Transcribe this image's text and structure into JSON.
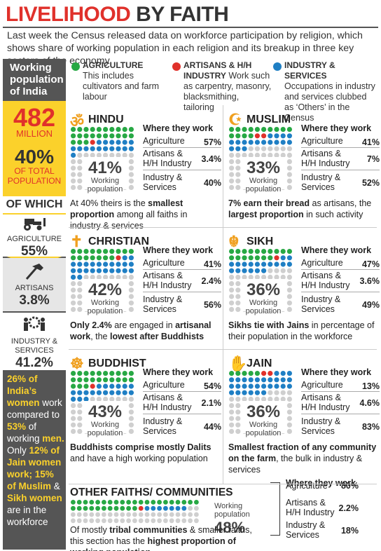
{
  "title": {
    "part1": "LIVELIHOOD",
    "part2": " BY FAITH"
  },
  "intro": "Last week the Census released data on workforce participation by religion, which shows share of working population in each religion and its breakup in three key sectors of the economy",
  "colors": {
    "agriculture": "#27a844",
    "artisans": "#e0312b",
    "industry": "#1f7fc4",
    "idle": "#cfcfcf",
    "accent_red": "#e0312b",
    "accent_yellow": "#fbd12b",
    "sidebar": "#555555"
  },
  "legend": [
    {
      "head": "AGRICULTURE",
      "text": "This includes cultivators and farm labour",
      "color": "#27a844"
    },
    {
      "head": "ARTISANS & H/H INDUSTRY",
      "text": " Work such as carpentry, masonry, blacksmithing, tailoring",
      "color": "#e0312b"
    },
    {
      "head": "INDUSTRY & SERVICES",
      "text": "Occupations in industry and services clubbed as ‘Others’ in the Census",
      "color": "#1f7fc4"
    }
  ],
  "sidebar": {
    "title": "Working population of India",
    "total": "482",
    "total_unit": "MILLION",
    "share": "40%",
    "share_label": "OF TOTAL POPULATION",
    "of_which": "OF WHICH",
    "sectors": [
      {
        "label": "AGRICULTURE",
        "value": "55%",
        "icon": "tractor-icon"
      },
      {
        "label": "ARTISANS",
        "value": "3.8%",
        "icon": "hammer-icon"
      },
      {
        "label": "INDUSTRY & SERVICES",
        "value": "41.2%",
        "icon": "workers-gear-icon"
      }
    ],
    "women_note": [
      {
        "t": "26% of India’s ",
        "b": true
      },
      {
        "t": "women",
        "b": true
      },
      {
        "t": " work compared to ",
        "b": false
      },
      {
        "t": "53%",
        "b": true
      },
      {
        "t": " of working ",
        "b": false
      },
      {
        "t": "men.",
        "b": true
      },
      {
        "t": " Only ",
        "b": false
      },
      {
        "t": "12% of Jain women work; 15% of Muslim",
        "b": true
      },
      {
        "t": " & ",
        "b": false
      },
      {
        "t": "Sikh women",
        "b": true
      },
      {
        "t": " are in the workforce",
        "b": false
      }
    ]
  },
  "labels": {
    "where": "Where they work",
    "agri": "Agriculture",
    "art1": "Artisans &",
    "art2": "H/H Industry",
    "ind1": "Industry &",
    "ind2": "Services",
    "wp1": "Working",
    "wp2": "population"
  },
  "chart_data": [
    {
      "type": "table",
      "name": "HINDU",
      "icon": "om-icon",
      "working_population_pct": 41,
      "agriculture": 57,
      "artisans": 3.4,
      "industry_services": 40,
      "display": {
        "agri": "57%",
        "art": "3.4%",
        "ind": "40%",
        "wp": "41%"
      },
      "note": [
        {
          "t": "At 40% theirs is the ",
          "b": false
        },
        {
          "t": "smallest proportion",
          "b": true
        },
        {
          "t": " among all faiths in industry & services",
          "b": false
        }
      ]
    },
    {
      "type": "table",
      "name": "MUSLIM",
      "icon": "crescent-icon",
      "working_population_pct": 33,
      "agriculture": 41,
      "artisans": 7,
      "industry_services": 52,
      "display": {
        "agri": "41%",
        "art": "7%",
        "ind": "52%",
        "wp": "33%"
      },
      "note": [
        {
          "t": "7% earn their bread",
          "b": true
        },
        {
          "t": " as artisans, the ",
          "b": false
        },
        {
          "t": "largest proportion",
          "b": true
        },
        {
          "t": " in such activity",
          "b": false
        }
      ]
    },
    {
      "type": "table",
      "name": "CHRISTIAN",
      "icon": "cross-icon",
      "working_population_pct": 42,
      "agriculture": 41,
      "artisans": 2.4,
      "industry_services": 56,
      "display": {
        "agri": "41%",
        "art": "2.4%",
        "ind": "56%",
        "wp": "42%"
      },
      "note": [
        {
          "t": "Only 2.4%",
          "b": true
        },
        {
          "t": " are engaged in ",
          "b": false
        },
        {
          "t": "artisanal work",
          "b": true
        },
        {
          "t": ", the ",
          "b": false
        },
        {
          "t": "lowest after Buddhists",
          "b": true
        }
      ]
    },
    {
      "type": "table",
      "name": "SIKH",
      "icon": "khanda-icon",
      "working_population_pct": 36,
      "agriculture": 47,
      "artisans": 3.6,
      "industry_services": 49,
      "display": {
        "agri": "47%",
        "art": "3.6%",
        "ind": "49%",
        "wp": "36%"
      },
      "note": [
        {
          "t": "Sikhs tie with Jains",
          "b": true
        },
        {
          "t": " in percentage of their population in the workforce",
          "b": false
        }
      ]
    },
    {
      "type": "table",
      "name": "BUDDHIST",
      "icon": "dharma-wheel-icon",
      "working_population_pct": 43,
      "agriculture": 54,
      "artisans": 2.1,
      "industry_services": 44,
      "display": {
        "agri": "54%",
        "art": "2.1%",
        "ind": "44%",
        "wp": "43%"
      },
      "note": [
        {
          "t": "Buddhists comprise mostly Dalits",
          "b": true
        },
        {
          "t": " and have a high working population",
          "b": false
        }
      ]
    },
    {
      "type": "table",
      "name": "JAIN",
      "icon": "hand-icon",
      "working_population_pct": 36,
      "agriculture": 13,
      "artisans": 4.6,
      "industry_services": 83,
      "display": {
        "agri": "13%",
        "art": "4.6%",
        "ind": "83%",
        "wp": "36%"
      },
      "note": [
        {
          "t": "Smallest fraction of any community on the farm",
          "b": true
        },
        {
          "t": ", the bulk in industry & services",
          "b": false
        }
      ]
    },
    {
      "type": "table",
      "name": "OTHER FAITHS/ COMMUNITIES",
      "icon": "",
      "working_population_pct": 48,
      "agriculture": 80,
      "artisans": 2.2,
      "industry_services": 18,
      "display": {
        "agri": "80%",
        "art": "2.2%",
        "ind": "18%",
        "wp": "48%"
      },
      "note": [
        {
          "t": "Of mostly ",
          "b": false
        },
        {
          "t": "tribal communities",
          "b": true
        },
        {
          "t": " & smaller faiths, this section has the ",
          "b": false
        },
        {
          "t": "highest proportion of working population",
          "b": true
        }
      ]
    }
  ]
}
